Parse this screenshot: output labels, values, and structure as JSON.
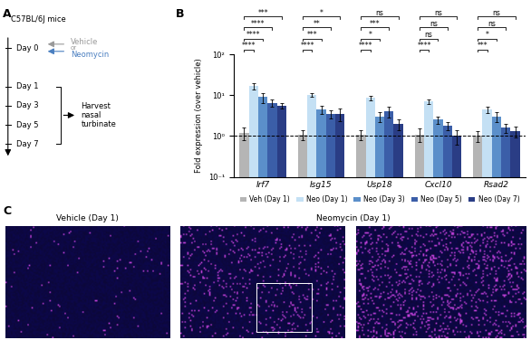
{
  "panel_labels": [
    "A",
    "B",
    "C"
  ],
  "timeline": {
    "strain": "C57BL/6J mice",
    "treatment": {
      "vehicle": "Vehicle",
      "joiner": "or",
      "drug": "Neomycin"
    },
    "days": [
      "Day 0",
      "Day 1",
      "Day 3",
      "Day 5",
      "Day 7"
    ],
    "harvest": "Harvest\nnasal\nturbinate"
  },
  "chart_data": {
    "type": "bar",
    "y_label": "Fold expression (over vehicle)",
    "categories": [
      "Irf7",
      "Isg15",
      "Usp18",
      "Cxcl10",
      "Rsad2"
    ],
    "log": "y",
    "ylim": [
      0.1,
      100
    ],
    "yticks": [
      {
        "value": 0.1,
        "label": "10⁻¹"
      },
      {
        "value": 1,
        "label": "10⁰"
      },
      {
        "value": 10,
        "label": "10¹"
      },
      {
        "value": 100,
        "label": "10²"
      }
    ],
    "reference_line": 1,
    "legend": "below",
    "series": [
      {
        "name": "Veh (Day 1)",
        "color": "#b5b5b5",
        "values": [
          1.2,
          1.1,
          1.1,
          1.1,
          1.0
        ],
        "errors": [
          0.4,
          0.3,
          0.3,
          0.4,
          0.3
        ]
      },
      {
        "name": "Neo (Day 1)",
        "color": "#c4e0f4",
        "values": [
          17,
          10,
          8.5,
          7,
          4.5
        ],
        "errors": [
          3,
          1,
          1,
          0.8,
          0.8
        ],
        "significance": [
          "****",
          "****",
          "****",
          "****",
          "***"
        ]
      },
      {
        "name": "Neo (Day 3)",
        "color": "#5b8fca",
        "values": [
          9,
          4.5,
          3,
          2.5,
          3
        ],
        "errors": [
          2.5,
          1,
          0.8,
          0.5,
          0.8
        ],
        "significance": [
          "****",
          "***",
          "*",
          "ns",
          "*"
        ]
      },
      {
        "name": "Neo (Day 5)",
        "color": "#3b5ea8",
        "values": [
          6.5,
          3.5,
          4,
          1.8,
          1.6
        ],
        "errors": [
          1.2,
          0.8,
          1.2,
          0.4,
          0.4
        ],
        "significance": [
          "****",
          "**",
          "***",
          "ns",
          "ns"
        ]
      },
      {
        "name": "Neo (Day 7)",
        "color": "#2a3d85",
        "values": [
          5.5,
          3.5,
          2,
          1.0,
          1.3
        ],
        "errors": [
          0.8,
          1.2,
          0.6,
          0.4,
          0.4
        ],
        "significance": [
          "***",
          "*",
          "ns",
          "ns",
          "ns"
        ]
      }
    ]
  },
  "images": {
    "titles": [
      "Vehicle (Day 1)",
      "Neomycin (Day 1)"
    ]
  }
}
